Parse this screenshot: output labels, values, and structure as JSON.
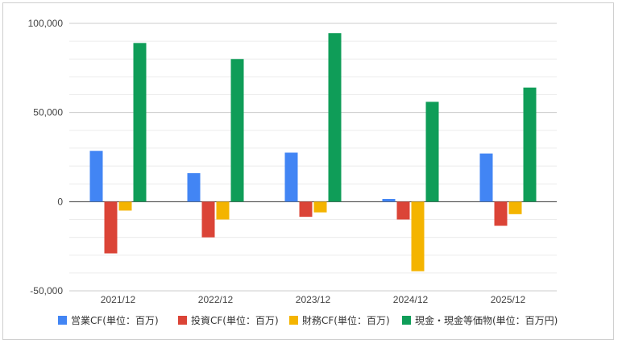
{
  "chart_data": {
    "type": "bar",
    "categories": [
      "2021/12",
      "2022/12",
      "2023/12",
      "2024/12",
      "2025/12"
    ],
    "series": [
      {
        "name": "営業CF(単位：百万)",
        "color": "#4285F4",
        "values": [
          28500,
          16000,
          27500,
          1500,
          27000
        ]
      },
      {
        "name": "投資CF(単位：百万)",
        "color": "#DB4437",
        "values": [
          -29000,
          -20000,
          -8500,
          -10000,
          -13500
        ]
      },
      {
        "name": "財務CF(単位：百万)",
        "color": "#F4B400",
        "values": [
          -5000,
          -10000,
          -6000,
          -39000,
          -7000
        ]
      },
      {
        "name": "現金・現金等価物(単位：百万円)",
        "color": "#0F9D58",
        "values": [
          89000,
          80000,
          94500,
          56000,
          64000
        ]
      }
    ],
    "yticks": [
      -50000,
      0,
      50000,
      100000
    ],
    "ytick_labels": [
      "-50,000",
      "0",
      "50,000",
      "100,000"
    ],
    "ylim": [
      -50000,
      100000
    ],
    "grid": true,
    "legend_position": "bottom"
  }
}
